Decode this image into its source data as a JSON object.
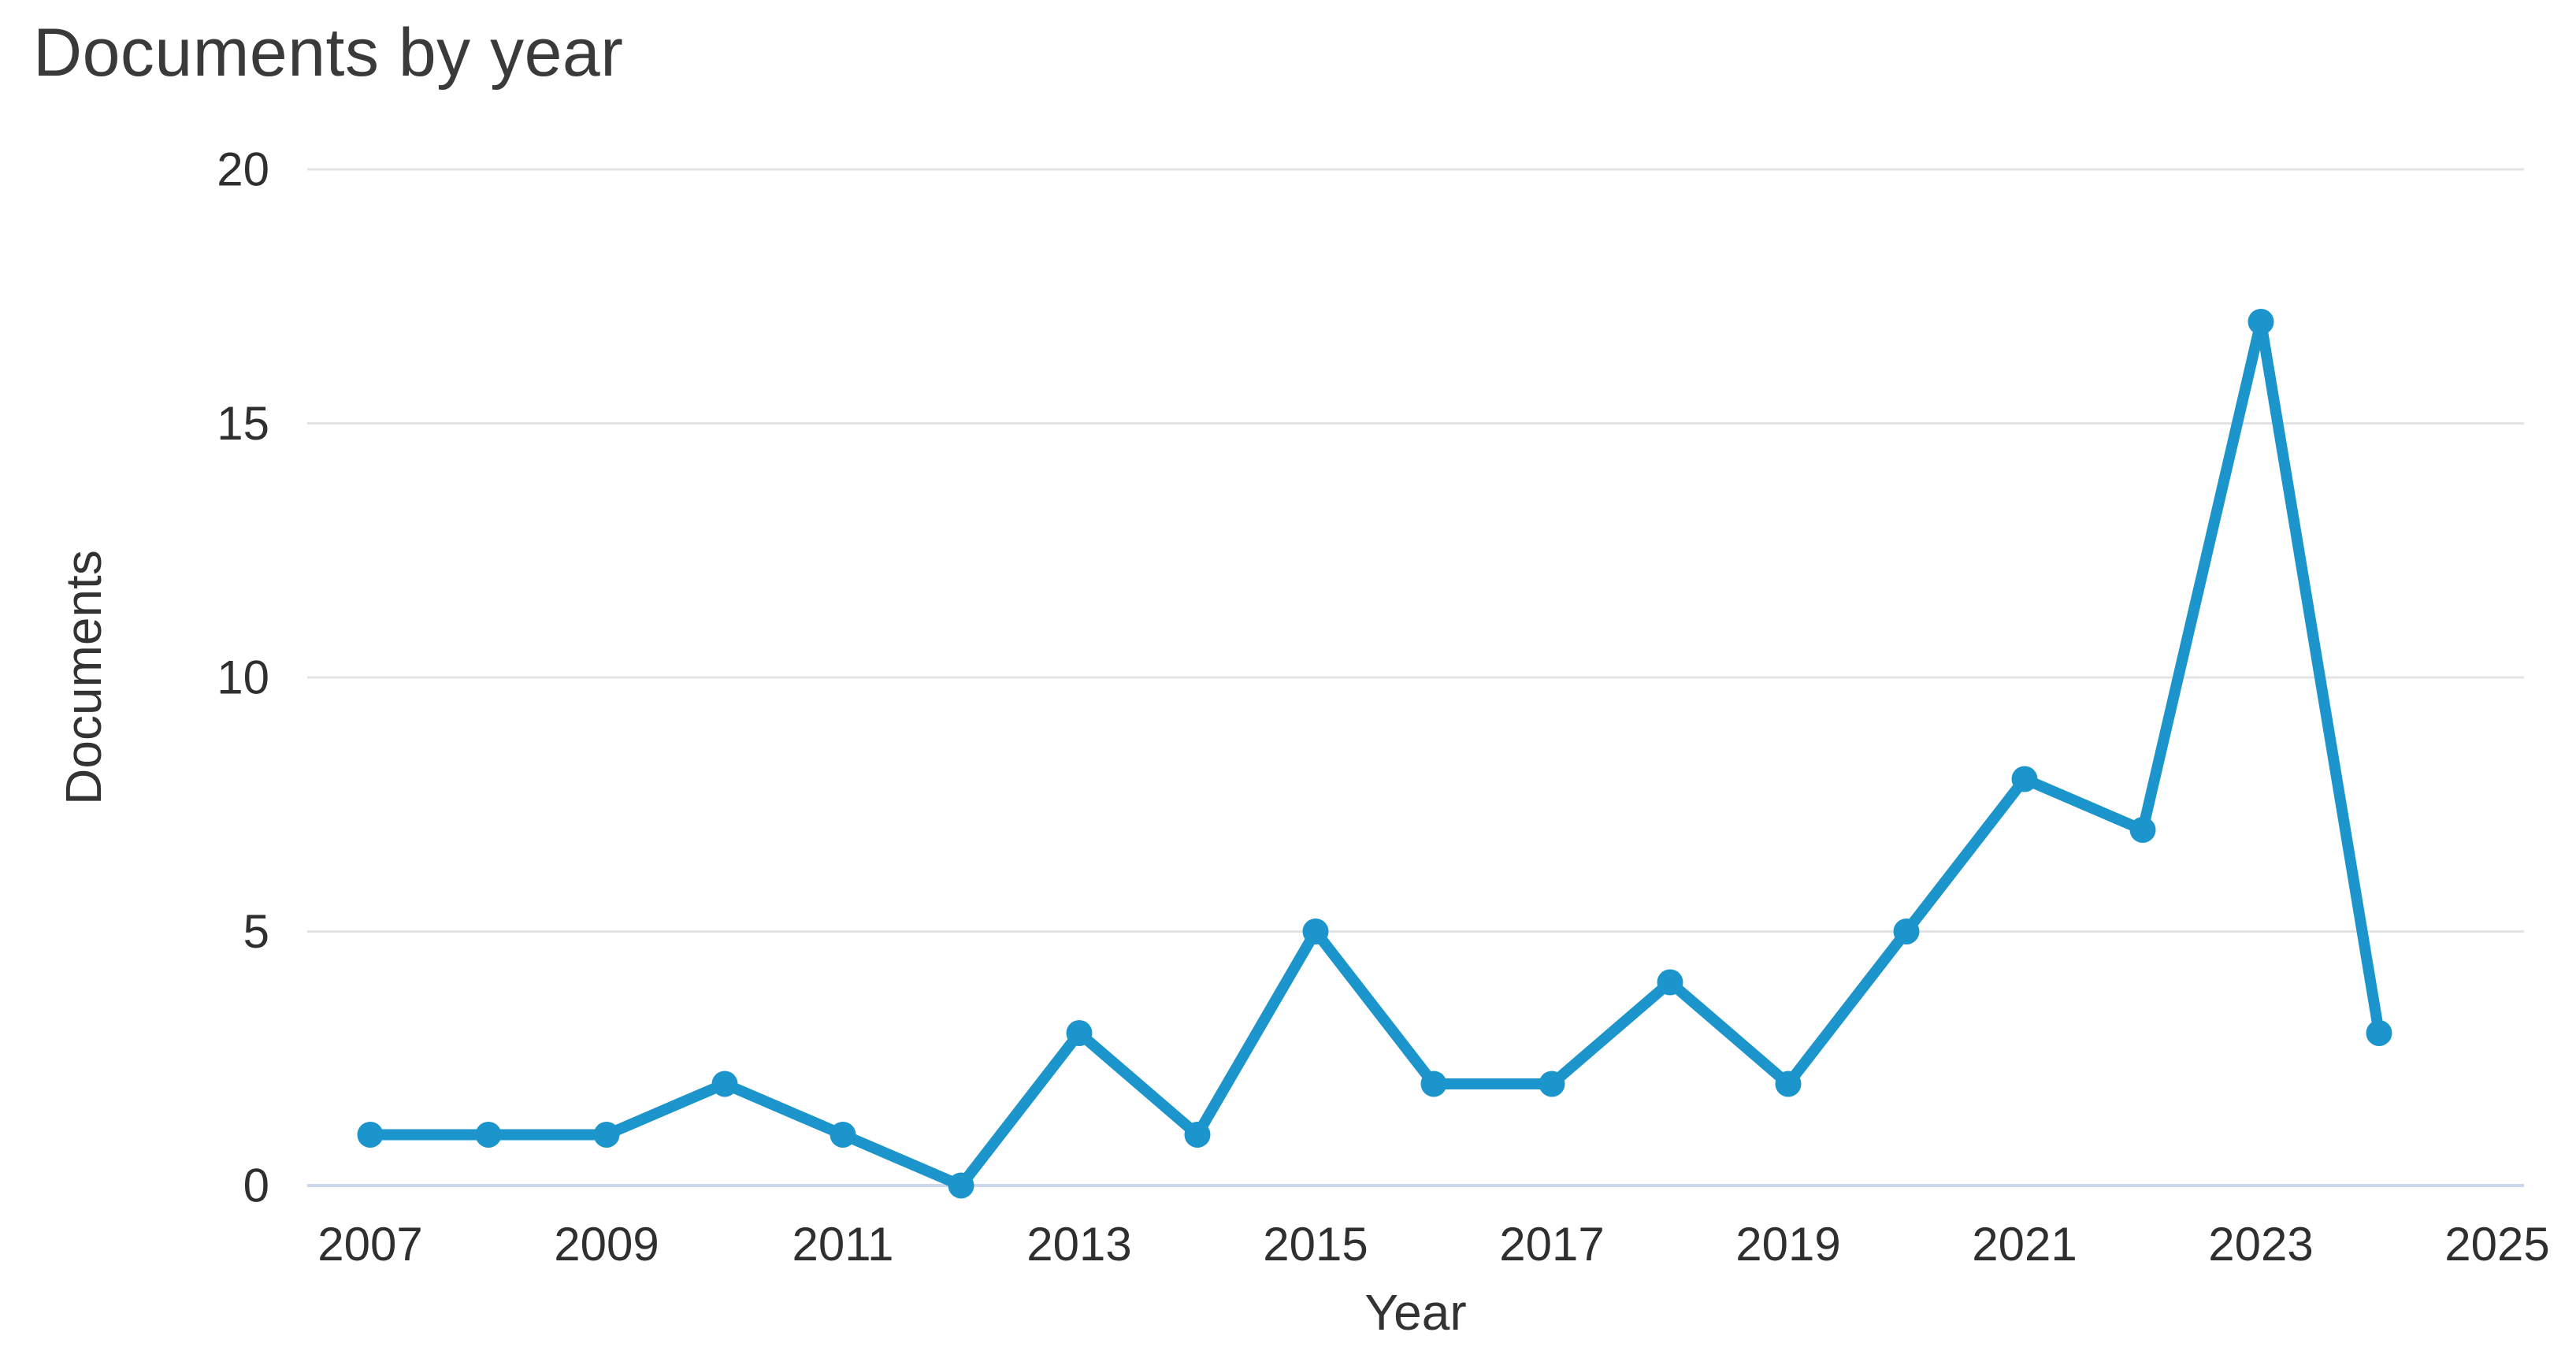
{
  "title": "Documents by year",
  "chart_data": {
    "type": "line",
    "title": "Documents by year",
    "xlabel": "Year",
    "ylabel": "Documents",
    "x": [
      2007,
      2008,
      2009,
      2010,
      2011,
      2012,
      2013,
      2014,
      2015,
      2016,
      2017,
      2018,
      2019,
      2020,
      2021,
      2022,
      2023,
      2024
    ],
    "series": [
      {
        "name": "Documents",
        "values": [
          1,
          1,
          1,
          2,
          1,
          0,
          3,
          1,
          5,
          2,
          2,
          4,
          2,
          5,
          8,
          7,
          17,
          3
        ]
      }
    ],
    "x_tick_labels": [
      "2007",
      "2009",
      "2011",
      "2013",
      "2015",
      "2017",
      "2019",
      "2021",
      "2023",
      "2025"
    ],
    "x_tick_years": [
      2007,
      2009,
      2011,
      2013,
      2015,
      2017,
      2019,
      2021,
      2023,
      2025
    ],
    "y_ticks": [
      0,
      5,
      10,
      15,
      20
    ],
    "ylim": [
      0,
      20
    ],
    "xlim": [
      2007,
      2025
    ],
    "grid": "horizontal-only",
    "legend": "none",
    "marker": "filled-circle"
  },
  "colors": {
    "line": "#1b95cb",
    "marker": "#1b95cb",
    "gridline": "#e3e3e3",
    "baseline": "#ccd6ec",
    "tick_text": "#2f2f2f",
    "title_text": "#3a3a3a"
  }
}
